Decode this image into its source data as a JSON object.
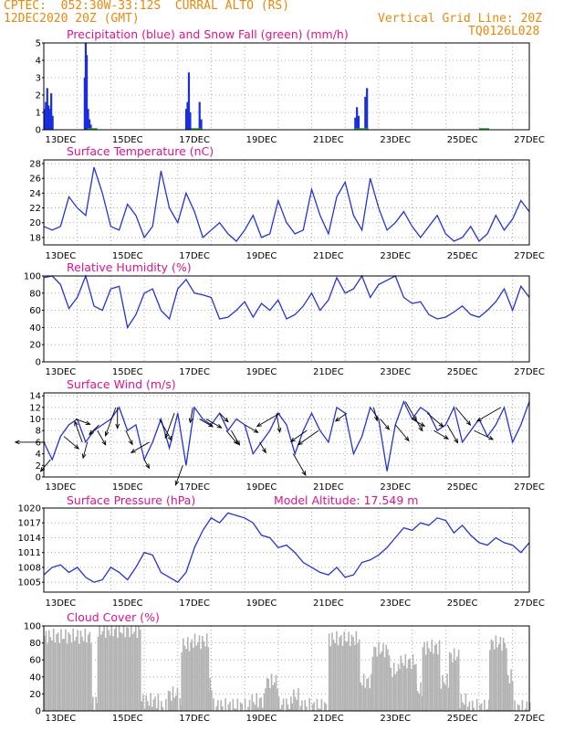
{
  "header": {
    "line1": "CPTEC:  052:30W-33:12S  CURRAL ALTO (RS)",
    "line2": "12DEC2020 20Z (GMT)",
    "grid_note": "Vertical Grid Line: 20Z",
    "code": "TQ0126L028"
  },
  "colors": {
    "accent_header": "#e8890c",
    "title_color": "#e0138c",
    "line_color": "#2233dd",
    "precip_color": "#1a2de0",
    "snow_color": "#22aa22",
    "cloud_color": "#b3b3b3",
    "grid_color": "#999999"
  },
  "x_ticks": [
    "13DEC",
    "15DEC",
    "17DEC",
    "19DEC",
    "21DEC",
    "23DEC",
    "25DEC",
    "27DEC"
  ],
  "chart_data": [
    {
      "id": "precip",
      "type": "bar",
      "title": "Precipitation (blue) and Snow Fall (green) (mm/h)",
      "ylim": [
        0,
        5
      ],
      "yticks": [
        0,
        1,
        2,
        3,
        4,
        5
      ],
      "x_unit": "days since start (12DEC 20Z = 0.0)",
      "bars": [
        [
          0.02,
          1.2
        ],
        [
          0.06,
          1.6
        ],
        [
          0.1,
          2.4
        ],
        [
          0.14,
          1.4
        ],
        [
          0.18,
          1.2
        ],
        [
          0.22,
          2.1
        ],
        [
          0.26,
          0.8
        ],
        [
          1.22,
          3.0
        ],
        [
          1.25,
          5.0
        ],
        [
          1.28,
          4.3
        ],
        [
          1.32,
          1.2
        ],
        [
          1.36,
          0.6
        ],
        [
          1.4,
          0.3
        ],
        [
          4.25,
          1.2
        ],
        [
          4.29,
          1.6
        ],
        [
          4.33,
          3.3
        ],
        [
          4.37,
          1.0
        ],
        [
          4.65,
          1.6
        ],
        [
          4.7,
          0.6
        ],
        [
          9.3,
          0.7
        ],
        [
          9.35,
          1.3
        ],
        [
          9.4,
          0.8
        ],
        [
          9.6,
          1.9
        ],
        [
          9.65,
          2.4
        ]
      ],
      "snow": []
    },
    {
      "id": "temperature",
      "type": "line",
      "title": "Surface Temperature (nC)",
      "ylim": [
        17,
        28.5
      ],
      "yticks": [
        18,
        20,
        22,
        24,
        26,
        28
      ],
      "x": [
        0,
        0.25,
        0.5,
        0.75,
        1.0,
        1.25,
        1.5,
        1.75,
        2.0,
        2.25,
        2.5,
        2.75,
        3.0,
        3.25,
        3.5,
        3.75,
        4.0,
        4.25,
        4.5,
        4.75,
        5.0,
        5.25,
        5.5,
        5.75,
        6.0,
        6.25,
        6.5,
        6.75,
        7.0,
        7.25,
        7.5,
        7.75,
        8.0,
        8.25,
        8.5,
        8.75,
        9.0,
        9.25,
        9.5,
        9.75,
        10.0,
        10.25,
        10.5,
        10.75,
        11.0,
        11.25,
        11.5,
        11.75,
        12.0,
        12.25,
        12.5,
        12.75,
        13.0,
        13.25,
        13.5,
        13.75,
        14.0,
        14.25,
        14.5
      ],
      "values": [
        19.5,
        19.0,
        19.5,
        23.5,
        22.0,
        21.0,
        27.5,
        24.0,
        19.5,
        19.0,
        22.5,
        21.0,
        18.0,
        19.5,
        27.0,
        22.0,
        20.0,
        24.0,
        21.5,
        18.0,
        19.0,
        20.0,
        18.5,
        17.5,
        19.0,
        21.0,
        18.0,
        18.5,
        23.0,
        20.0,
        18.5,
        19.0,
        24.5,
        21.0,
        18.5,
        23.5,
        25.5,
        21.0,
        19.0,
        26.0,
        22.0,
        19.0,
        20.0,
        21.5,
        19.5,
        18.0,
        19.5,
        21.0,
        18.5,
        17.5,
        18.0,
        19.5,
        17.5,
        18.5,
        21.0,
        19.0,
        20.5,
        23.0,
        21.5
      ]
    },
    {
      "id": "humidity",
      "type": "line",
      "title": "Relative Humidity (%)",
      "ylim": [
        0,
        100
      ],
      "yticks": [
        0,
        20,
        40,
        60,
        80,
        100
      ],
      "x": [
        0,
        0.25,
        0.5,
        0.75,
        1.0,
        1.25,
        1.5,
        1.75,
        2.0,
        2.25,
        2.5,
        2.75,
        3.0,
        3.25,
        3.5,
        3.75,
        4.0,
        4.25,
        4.5,
        4.75,
        5.0,
        5.25,
        5.5,
        5.75,
        6.0,
        6.25,
        6.5,
        6.75,
        7.0,
        7.25,
        7.5,
        7.75,
        8.0,
        8.25,
        8.5,
        8.75,
        9.0,
        9.25,
        9.5,
        9.75,
        10.0,
        10.25,
        10.5,
        10.75,
        11.0,
        11.25,
        11.5,
        11.75,
        12.0,
        12.25,
        12.5,
        12.75,
        13.0,
        13.25,
        13.5,
        13.75,
        14.0,
        14.25,
        14.5
      ],
      "values": [
        98,
        100,
        90,
        62,
        75,
        100,
        65,
        60,
        85,
        88,
        40,
        55,
        80,
        85,
        60,
        50,
        85,
        96,
        80,
        78,
        75,
        50,
        52,
        60,
        70,
        52,
        68,
        60,
        72,
        50,
        55,
        65,
        80,
        60,
        72,
        98,
        80,
        85,
        100,
        75,
        90,
        95,
        100,
        75,
        68,
        70,
        55,
        50,
        52,
        58,
        65,
        55,
        52,
        60,
        70,
        85,
        60,
        88,
        75
      ]
    },
    {
      "id": "wind",
      "type": "line",
      "title": "Surface Wind (m/s)",
      "ylim": [
        0,
        14.5
      ],
      "yticks": [
        0,
        2,
        4,
        6,
        8,
        10,
        12,
        14
      ],
      "x": [
        0,
        0.25,
        0.5,
        0.75,
        1.0,
        1.25,
        1.5,
        1.75,
        2.0,
        2.25,
        2.5,
        2.75,
        3.0,
        3.25,
        3.5,
        3.75,
        4.0,
        4.25,
        4.5,
        4.75,
        5.0,
        5.25,
        5.5,
        5.75,
        6.0,
        6.25,
        6.5,
        6.75,
        7.0,
        7.25,
        7.5,
        7.75,
        8.0,
        8.25,
        8.5,
        8.75,
        9.0,
        9.25,
        9.5,
        9.75,
        10.0,
        10.25,
        10.5,
        10.75,
        11.0,
        11.25,
        11.5,
        11.75,
        12.0,
        12.25,
        12.5,
        12.75,
        13.0,
        13.25,
        13.5,
        13.75,
        14.0,
        14.25,
        14.5
      ],
      "values": [
        6,
        3,
        7,
        9,
        10,
        6,
        8,
        9,
        10,
        12,
        8,
        9,
        3,
        6,
        10,
        5,
        11,
        2,
        12,
        10,
        9,
        11,
        8,
        10,
        9,
        4,
        6,
        8,
        11,
        9,
        4,
        8,
        11,
        8,
        6,
        12,
        11,
        4,
        7,
        12,
        10,
        1,
        9,
        13,
        10,
        12,
        11,
        8,
        9,
        12,
        6,
        8,
        10,
        7,
        9,
        12,
        6,
        9,
        13
      ]
    },
    {
      "id": "pressure",
      "type": "line",
      "title": "Surface Pressure (hPa)",
      "subtitle": "Model Altitude: 17.549  m",
      "ylim": [
        1003,
        1020
      ],
      "yticks": [
        1005,
        1008,
        1011,
        1014,
        1017,
        1020
      ],
      "x": [
        0,
        0.25,
        0.5,
        0.75,
        1.0,
        1.25,
        1.5,
        1.75,
        2.0,
        2.25,
        2.5,
        2.75,
        3.0,
        3.25,
        3.5,
        3.75,
        4.0,
        4.25,
        4.5,
        4.75,
        5.0,
        5.25,
        5.5,
        5.75,
        6.0,
        6.25,
        6.5,
        6.75,
        7.0,
        7.25,
        7.5,
        7.75,
        8.0,
        8.25,
        8.5,
        8.75,
        9.0,
        9.25,
        9.5,
        9.75,
        10.0,
        10.25,
        10.5,
        10.75,
        11.0,
        11.25,
        11.5,
        11.75,
        12.0,
        12.25,
        12.5,
        12.75,
        13.0,
        13.25,
        13.5,
        13.75,
        14.0,
        14.25,
        14.5
      ],
      "values": [
        1006.5,
        1008,
        1008.5,
        1007,
        1008,
        1006,
        1005,
        1005.5,
        1008,
        1007,
        1005.5,
        1008,
        1011,
        1010.5,
        1007,
        1006,
        1005,
        1007,
        1012,
        1015.5,
        1018,
        1017,
        1019,
        1018.5,
        1018,
        1017,
        1014.5,
        1014,
        1012,
        1012.5,
        1011,
        1009,
        1008,
        1007,
        1006.5,
        1008,
        1006,
        1006.5,
        1009,
        1009.5,
        1010.5,
        1012,
        1014,
        1016,
        1015.5,
        1017,
        1016.5,
        1018,
        1017.5,
        1015,
        1016.5,
        1014.5,
        1013,
        1012.5,
        1014,
        1013,
        1012.5,
        1011,
        1013
      ]
    },
    {
      "id": "cloud",
      "type": "bar",
      "title": "Cloud Cover (%)",
      "ylim": [
        0,
        100
      ],
      "yticks": [
        0,
        20,
        40,
        60,
        80,
        100
      ],
      "profile": [
        [
          0.0,
          1.4,
          88
        ],
        [
          1.4,
          1.6,
          10
        ],
        [
          1.6,
          2.9,
          95
        ],
        [
          2.9,
          3.4,
          12
        ],
        [
          3.4,
          3.7,
          5
        ],
        [
          3.7,
          4.0,
          20
        ],
        [
          4.0,
          4.1,
          8
        ],
        [
          4.1,
          4.4,
          78
        ],
        [
          4.4,
          4.9,
          82
        ],
        [
          4.9,
          5.0,
          30
        ],
        [
          5.0,
          6.2,
          6
        ],
        [
          6.2,
          6.6,
          12
        ],
        [
          6.6,
          7.0,
          35
        ],
        [
          7.0,
          7.4,
          8
        ],
        [
          7.4,
          7.6,
          18
        ],
        [
          7.6,
          8.5,
          6
        ],
        [
          8.5,
          9.4,
          85
        ],
        [
          9.4,
          9.8,
          35
        ],
        [
          9.8,
          10.3,
          72
        ],
        [
          10.3,
          10.6,
          48
        ],
        [
          10.6,
          11.1,
          58
        ],
        [
          11.1,
          11.3,
          25
        ],
        [
          11.3,
          11.8,
          75
        ],
        [
          11.8,
          12.1,
          35
        ],
        [
          12.1,
          12.4,
          65
        ],
        [
          12.4,
          12.6,
          12
        ],
        [
          12.6,
          13.3,
          5
        ],
        [
          13.3,
          13.8,
          80
        ],
        [
          13.8,
          14.0,
          40
        ],
        [
          14.0,
          14.5,
          4
        ]
      ]
    }
  ],
  "wind_vectors": [
    [
      0.05,
      180,
      55
    ],
    [
      0.2,
      230,
      28
    ],
    [
      0.6,
      320,
      35
    ],
    [
      0.95,
      340,
      28
    ],
    [
      1.15,
      110,
      40
    ],
    [
      1.3,
      255,
      30
    ],
    [
      1.6,
      300,
      30
    ],
    [
      1.65,
      225,
      25
    ],
    [
      2.15,
      250,
      55
    ],
    [
      2.2,
      270,
      38
    ],
    [
      2.45,
      295,
      28
    ],
    [
      3.0,
      300,
      18
    ],
    [
      3.15,
      210,
      38
    ],
    [
      3.45,
      300,
      45
    ],
    [
      3.9,
      250,
      48
    ],
    [
      4.15,
      250,
      38
    ],
    [
      4.45,
      260,
      28
    ],
    [
      4.65,
      330,
      28
    ],
    [
      4.85,
      330,
      32
    ],
    [
      5.25,
      315,
      22
    ],
    [
      5.45,
      310,
      32
    ],
    [
      5.6,
      300,
      30
    ],
    [
      6.0,
      330,
      28
    ],
    [
      6.45,
      300,
      22
    ],
    [
      6.95,
      280,
      35
    ],
    [
      7.05,
      210,
      48
    ],
    [
      7.45,
      300,
      45
    ],
    [
      7.85,
      215,
      35
    ],
    [
      8.2,
      215,
      45
    ],
    [
      9.05,
      215,
      25
    ],
    [
      9.85,
      285,
      25
    ],
    [
      10.05,
      310,
      25
    ],
    [
      10.5,
      310,
      38
    ],
    [
      10.8,
      300,
      40
    ],
    [
      11.0,
      330,
      26
    ],
    [
      11.1,
      300,
      25
    ],
    [
      11.45,
      320,
      38
    ],
    [
      11.65,
      330,
      30
    ],
    [
      12.05,
      300,
      38
    ],
    [
      12.3,
      310,
      42
    ],
    [
      12.85,
      335,
      38
    ],
    [
      13.65,
      210,
      50
    ]
  ]
}
